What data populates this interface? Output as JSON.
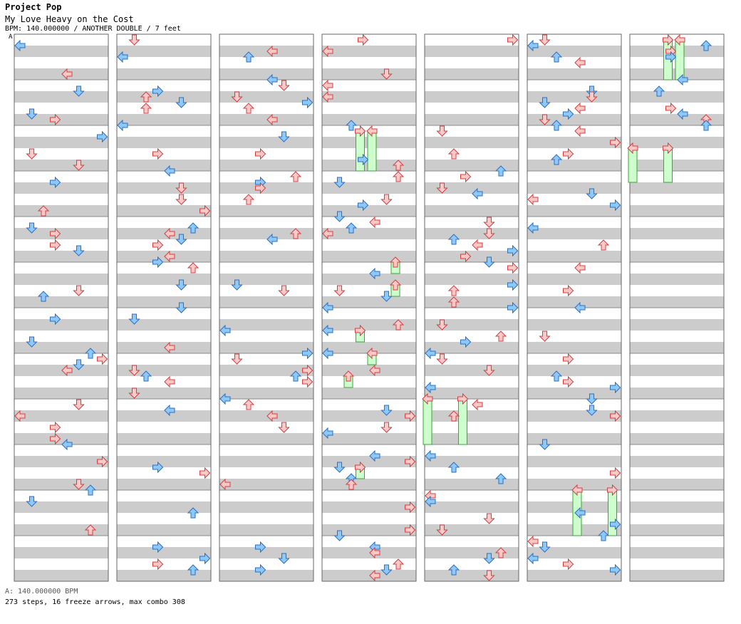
{
  "header": {
    "title": "Project Pop",
    "song": "My Love Heavy on the Cost",
    "info": "BPM: 140.000000 / ANOTHER DOUBLE / 7 feet"
  },
  "bpm_marker": "A",
  "footer": {
    "bpm_line": "A: 140.000000 BPM",
    "stats": "273 steps, 16 freeze arrows, max combo 308"
  },
  "colors": {
    "red_fill": "#ffc8c8",
    "red_stroke": "#d04040",
    "blue_fill": "#8ec8ff",
    "blue_stroke": "#2a70c0",
    "freeze_fill": "#ccffcc",
    "freeze_stroke": "#40a040",
    "stripe": "#cccccc"
  },
  "chart_data": {
    "type": "table",
    "lanes": 8,
    "measures_per_column": 12,
    "columns": 7,
    "notes": [
      {
        "m": 7,
        "l": 0,
        "c": "b"
      },
      {
        "m": 8,
        "l": 0,
        "c": "b"
      },
      {
        "m": 9,
        "l": 0,
        "c": "r"
      },
      {
        "m": 10,
        "l": 1,
        "c": "r"
      },
      {
        "m": 11,
        "l": 1,
        "c": "r"
      },
      {
        "m": 12,
        "l": 1,
        "c": "r"
      },
      {
        "m": 13,
        "l": 6,
        "c": "r"
      },
      {
        "m": 14,
        "l": 5,
        "c": "r"
      },
      {
        "m": 15,
        "l": 4,
        "c": "r"
      },
      {
        "m": 16,
        "l": 2,
        "c": "r"
      },
      {
        "m": 17,
        "l": 3,
        "c": "r"
      },
      {
        "m": 17,
        "l": 4,
        "c": "r"
      }
    ],
    "freezes": [
      {
        "col": 3,
        "lane": 3,
        "m0": 16,
        "m1": 23
      },
      {
        "col": 3,
        "lane": 4,
        "m0": 16,
        "m1": 23
      },
      {
        "col": 3,
        "lane": 6,
        "m0": 39,
        "m1": 41
      },
      {
        "col": 3,
        "lane": 6,
        "m0": 43,
        "m1": 45
      },
      {
        "col": 3,
        "lane": 3,
        "m0": 51,
        "m1": 53
      },
      {
        "col": 3,
        "lane": 4,
        "m0": 55,
        "m1": 57
      },
      {
        "col": 3,
        "lane": 2,
        "m0": 59,
        "m1": 61
      },
      {
        "col": 3,
        "lane": 3,
        "m0": 75,
        "m1": 77
      },
      {
        "col": 4,
        "lane": 0,
        "m0": 63,
        "m1": 71
      },
      {
        "col": 4,
        "lane": 3,
        "m0": 63,
        "m1": 71
      },
      {
        "col": 5,
        "lane": 4,
        "m0": 79,
        "m1": 87
      },
      {
        "col": 5,
        "lane": 7,
        "m0": 79,
        "m1": 87
      },
      {
        "col": 6,
        "lane": 3,
        "m0": 0,
        "m1": 7
      },
      {
        "col": 6,
        "lane": 4,
        "m0": 0,
        "m1": 7
      },
      {
        "col": 6,
        "lane": 0,
        "m0": 19,
        "m1": 25
      },
      {
        "col": 6,
        "lane": 3,
        "m0": 19,
        "m1": 25
      }
    ]
  }
}
